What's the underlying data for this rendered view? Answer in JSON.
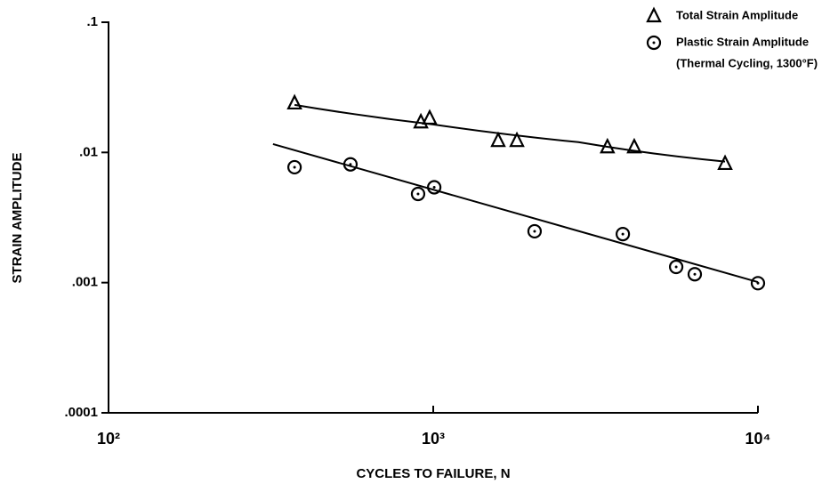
{
  "chart_data": {
    "type": "scatter",
    "x_label": "CYCLES TO FAILURE, N",
    "y_label": "STRAIN  AMPLITUDE",
    "xlim": [
      100,
      10000
    ],
    "ylim": [
      0.0001,
      0.1
    ],
    "log_x": true,
    "log_y": true,
    "xticks": [
      {
        "value": 100,
        "label": "10²"
      },
      {
        "value": 1000,
        "label": "10³"
      },
      {
        "value": 10000,
        "label": "10⁴"
      }
    ],
    "yticks": [
      {
        "value": 0.0001,
        "label": ".0001"
      },
      {
        "value": 0.001,
        "label": ".001"
      },
      {
        "value": 0.01,
        "label": ".01"
      },
      {
        "value": 0.1,
        "label": ".1"
      }
    ],
    "legend_position": "upper right",
    "legend_note": "(Thermal Cycling, 1300°F)",
    "series": [
      {
        "name": "Total Strain Amplitude",
        "marker": "triangle",
        "color": "#000000",
        "x": [
          374,
          916,
          975,
          1585,
          1810,
          3440,
          4160,
          7920
        ],
        "values": [
          0.0239,
          0.0171,
          0.0183,
          0.0123,
          0.0123,
          0.011,
          0.011,
          0.0082
        ],
        "fit": {
          "x": [
            374,
            1000,
            2800,
            7920
          ],
          "values": [
            0.0232,
            0.0164,
            0.012,
            0.0085
          ]
        }
      },
      {
        "name": "Plastic Strain Amplitude",
        "marker": "circle",
        "color": "#000000",
        "x": [
          374,
          556,
          898,
          1007,
          2052,
          3836,
          5600,
          6390,
          10000
        ],
        "values": [
          0.0077,
          0.0081,
          0.0048,
          0.0054,
          0.00248,
          0.00236,
          0.00132,
          0.00116,
          0.00099
        ],
        "fit": {
          "x": [
            321,
            10000
          ],
          "values": [
            0.0116,
            0.00101
          ]
        }
      }
    ]
  }
}
